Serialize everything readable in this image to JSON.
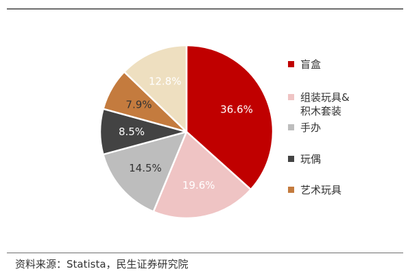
{
  "chart_data": {
    "type": "pie",
    "slices": [
      {
        "name": "盲盒",
        "value": 36.6,
        "label": "36.6%",
        "color": "#c00000",
        "label_color": "#ffffff"
      },
      {
        "name": "组装玩具&\n积木套装",
        "value": 19.6,
        "label": "19.6%",
        "color": "#efc4c4",
        "label_color": "#ffffff"
      },
      {
        "name": "手办",
        "value": 14.5,
        "label": "14.5%",
        "color": "#bdbdbd",
        "label_color": "#333333"
      },
      {
        "name": "玩偶",
        "value": 8.5,
        "label": "8.5%",
        "color": "#434343",
        "label_color": "#ffffff"
      },
      {
        "name": "艺术玩具",
        "value": 7.9,
        "label": "7.9%",
        "color": "#c47b3e",
        "label_color": "#333333"
      },
      {
        "name": "",
        "value": 12.8,
        "label": "12.8%",
        "color": "#eedfc0",
        "label_color": "#ffffff"
      }
    ],
    "legend_position": "right"
  },
  "legend": [
    {
      "label": "盲盒",
      "color": "#c00000"
    },
    {
      "label": "组装玩具&\n积木套装",
      "color": "#efc4c4"
    },
    {
      "label": "手办",
      "color": "#bdbdbd"
    },
    {
      "label": "玩偶",
      "color": "#434343"
    },
    {
      "label": "艺术玩具",
      "color": "#c47b3e"
    }
  ],
  "source": "资料来源：Statista，民生证券研究院"
}
